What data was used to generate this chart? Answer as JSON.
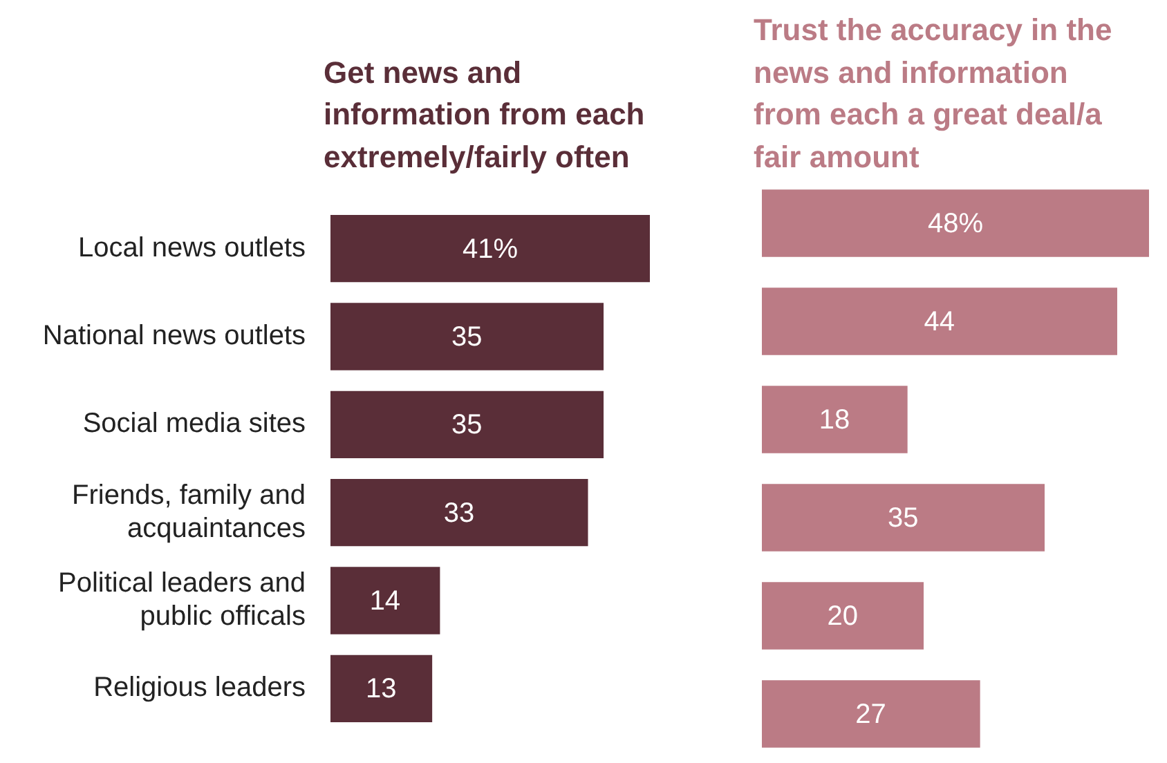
{
  "chart_data": [
    {
      "type": "bar",
      "orientation": "horizontal",
      "title": "Get news and information from each extremely/fairly often",
      "categories": [
        "Local news outlets",
        "National news outlets",
        "Social media sites",
        "Friends, family and acquaintances",
        "Political leaders and public officals",
        "Religious leaders"
      ],
      "values": [
        41,
        35,
        35,
        33,
        14,
        13
      ],
      "value_labels": [
        "41%",
        "35",
        "35",
        "33",
        "14",
        "13"
      ],
      "color": "#5a2e38",
      "tick_labels": "y"
    },
    {
      "type": "bar",
      "orientation": "horizontal",
      "title": "Trust the accuracy in the news and information from each a great deal/a fair amount",
      "categories": [
        null,
        null,
        null,
        null,
        null,
        null
      ],
      "values": [
        48,
        44,
        18,
        35,
        20,
        27
      ],
      "value_labels": [
        "48%",
        "44",
        "18",
        "35",
        "20",
        "27"
      ],
      "color": "#bb7b85",
      "tick_labels": false
    }
  ]
}
